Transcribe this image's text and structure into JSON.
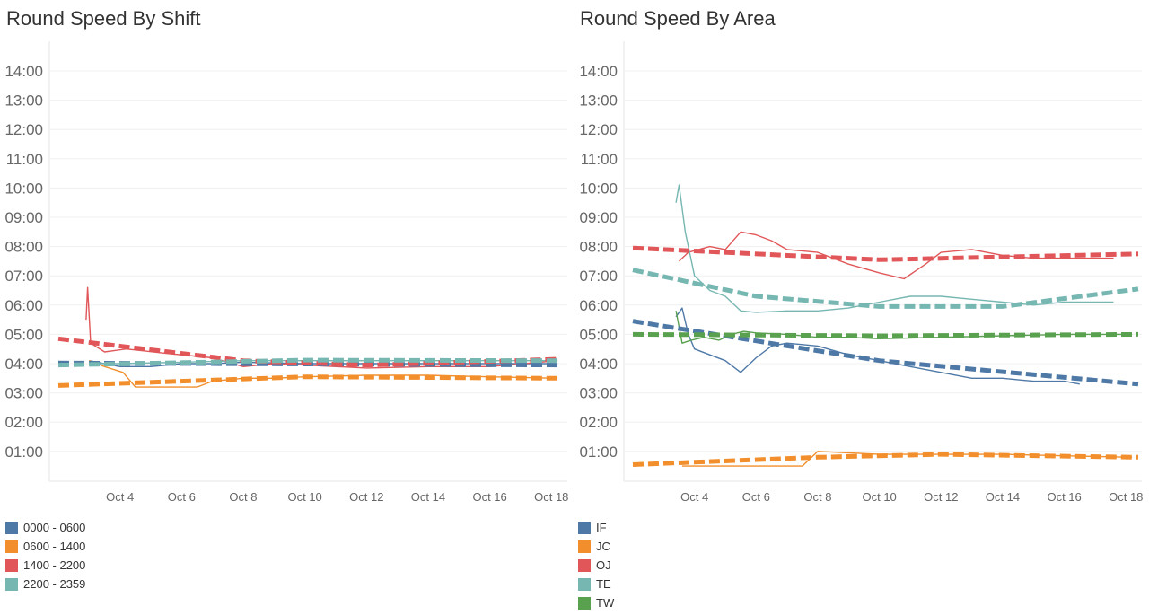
{
  "chart_data": [
    {
      "type": "line",
      "title": "Round Speed By Shift",
      "xlabel": "",
      "ylabel": "",
      "y_ticks": [
        "01:00",
        "02:00",
        "03:00",
        "04:00",
        "05:00",
        "06:00",
        "07:00",
        "08:00",
        "09:00",
        "10:00",
        "11:00",
        "12:00",
        "13:00",
        "14:00"
      ],
      "x_ticks": [
        "Oct 4",
        "Oct 6",
        "Oct 8",
        "Oct 10",
        "Oct 12",
        "Oct 14",
        "Oct 16",
        "Oct 18"
      ],
      "legend": "bottom-left",
      "grid": "horizontal",
      "series": [
        {
          "name": "0000 - 0600",
          "color": "#4e79a7",
          "values": [
            [
              3.0,
              4.1
            ],
            [
              3.5,
              4.0
            ],
            [
              4.0,
              3.9
            ],
            [
              5.0,
              3.9
            ],
            [
              6.0,
              4.0
            ],
            [
              7.0,
              4.0
            ],
            [
              8.0,
              4.05
            ],
            [
              10.0,
              4.0
            ],
            [
              12.0,
              4.0
            ],
            [
              14.0,
              4.0
            ],
            [
              16.0,
              4.0
            ],
            [
              18.2,
              4.0
            ]
          ],
          "trend": [
            [
              2.0,
              4.02
            ],
            [
              18.2,
              3.95
            ]
          ]
        },
        {
          "name": "0600 - 1400",
          "color": "#f28e2b",
          "values": [
            [
              3.0,
              4.1
            ],
            [
              3.5,
              3.9
            ],
            [
              4.1,
              3.7
            ],
            [
              4.5,
              3.2
            ],
            [
              5.5,
              3.2
            ],
            [
              6.5,
              3.2
            ],
            [
              7.0,
              3.4
            ],
            [
              8.0,
              3.5
            ],
            [
              9.0,
              3.5
            ],
            [
              10.0,
              3.55
            ],
            [
              12.0,
              3.6
            ],
            [
              14.0,
              3.6
            ],
            [
              16.0,
              3.55
            ],
            [
              18.2,
              3.5
            ]
          ],
          "trend": [
            [
              2.0,
              3.25
            ],
            [
              10.0,
              3.55
            ],
            [
              18.2,
              3.5
            ]
          ]
        },
        {
          "name": "1400 - 2200",
          "color": "#e15759",
          "values": [
            [
              2.9,
              5.5
            ],
            [
              2.95,
              6.6
            ],
            [
              3.05,
              4.7
            ],
            [
              3.5,
              4.4
            ],
            [
              4.2,
              4.5
            ],
            [
              5.5,
              4.35
            ],
            [
              7.0,
              4.2
            ],
            [
              8.0,
              3.9
            ],
            [
              9.0,
              4.0
            ],
            [
              10.0,
              3.95
            ],
            [
              12.0,
              3.85
            ],
            [
              14.0,
              3.9
            ],
            [
              16.0,
              3.9
            ],
            [
              18.2,
              4.1
            ]
          ],
          "trend": [
            [
              2.0,
              4.85
            ],
            [
              8.0,
              4.1
            ],
            [
              12.0,
              3.95
            ],
            [
              18.2,
              4.15
            ]
          ]
        },
        {
          "name": "2200 - 2359",
          "color": "#76b7b2",
          "values": [
            [
              3.0,
              4.0
            ],
            [
              4.0,
              4.0
            ],
            [
              6.0,
              4.05
            ],
            [
              8.0,
              4.1
            ],
            [
              10.0,
              4.1
            ],
            [
              12.0,
              4.1
            ],
            [
              14.0,
              4.1
            ],
            [
              16.0,
              4.1
            ],
            [
              18.2,
              4.1
            ]
          ],
          "trend": [
            [
              2.0,
              3.95
            ],
            [
              10.0,
              4.12
            ],
            [
              18.2,
              4.1
            ]
          ]
        }
      ],
      "ylim": [
        0,
        14.9
      ],
      "xlim": [
        2.0,
        18.4
      ]
    },
    {
      "type": "line",
      "title": "Round Speed By Area",
      "xlabel": "",
      "ylabel": "",
      "y_ticks": [
        "01:00",
        "02:00",
        "03:00",
        "04:00",
        "05:00",
        "06:00",
        "07:00",
        "08:00",
        "09:00",
        "10:00",
        "11:00",
        "12:00",
        "13:00",
        "14:00"
      ],
      "x_ticks": [
        "Oct 4",
        "Oct 6",
        "Oct 8",
        "Oct 10",
        "Oct 12",
        "Oct 14",
        "Oct 16",
        "Oct 18"
      ],
      "legend": "bottom-left",
      "grid": "horizontal",
      "series": [
        {
          "name": "IF",
          "color": "#4e79a7",
          "values": [
            [
              3.4,
              5.6
            ],
            [
              3.6,
              5.9
            ],
            [
              3.8,
              5.0
            ],
            [
              4.0,
              4.5
            ],
            [
              4.5,
              4.3
            ],
            [
              5.0,
              4.1
            ],
            [
              5.5,
              3.7
            ],
            [
              6.0,
              4.2
            ],
            [
              6.5,
              4.6
            ],
            [
              7.0,
              4.7
            ],
            [
              8.0,
              4.6
            ],
            [
              9.0,
              4.3
            ],
            [
              10.0,
              4.1
            ],
            [
              11.0,
              3.9
            ],
            [
              12.0,
              3.7
            ],
            [
              13.0,
              3.5
            ],
            [
              14.0,
              3.5
            ],
            [
              15.0,
              3.4
            ],
            [
              16.0,
              3.4
            ],
            [
              16.5,
              3.3
            ]
          ],
          "trend": [
            [
              2.0,
              5.45
            ],
            [
              10.0,
              4.1
            ],
            [
              18.4,
              3.3
            ]
          ]
        },
        {
          "name": "JC",
          "color": "#f28e2b",
          "values": [
            [
              3.6,
              0.5
            ],
            [
              5.5,
              0.5
            ],
            [
              7.5,
              0.5
            ],
            [
              8.0,
              1.0
            ],
            [
              9.0,
              0.95
            ],
            [
              10.0,
              0.9
            ],
            [
              12.0,
              0.9
            ],
            [
              14.0,
              0.9
            ],
            [
              16.0,
              0.85
            ],
            [
              18.2,
              0.8
            ]
          ],
          "trend": [
            [
              2.0,
              0.55
            ],
            [
              8.0,
              0.8
            ],
            [
              12.0,
              0.9
            ],
            [
              18.4,
              0.8
            ]
          ]
        },
        {
          "name": "OJ",
          "color": "#e15759",
          "values": [
            [
              3.5,
              7.5
            ],
            [
              3.8,
              7.8
            ],
            [
              4.5,
              8.0
            ],
            [
              5.0,
              7.9
            ],
            [
              5.5,
              8.5
            ],
            [
              6.0,
              8.4
            ],
            [
              6.5,
              8.2
            ],
            [
              7.0,
              7.9
            ],
            [
              8.0,
              7.8
            ],
            [
              9.0,
              7.4
            ],
            [
              10.0,
              7.1
            ],
            [
              10.8,
              6.9
            ],
            [
              11.5,
              7.4
            ],
            [
              12.0,
              7.8
            ],
            [
              13.0,
              7.9
            ],
            [
              14.0,
              7.7
            ],
            [
              15.0,
              7.6
            ],
            [
              16.0,
              7.6
            ],
            [
              17.6,
              7.6
            ]
          ],
          "trend": [
            [
              2.0,
              7.95
            ],
            [
              10.0,
              7.55
            ],
            [
              18.4,
              7.75
            ]
          ]
        },
        {
          "name": "TE",
          "color": "#76b7b2",
          "values": [
            [
              3.4,
              9.5
            ],
            [
              3.5,
              10.1
            ],
            [
              3.7,
              8.5
            ],
            [
              4.0,
              7.0
            ],
            [
              4.5,
              6.5
            ],
            [
              5.0,
              6.3
            ],
            [
              5.5,
              5.8
            ],
            [
              6.0,
              5.75
            ],
            [
              7.0,
              5.8
            ],
            [
              8.0,
              5.8
            ],
            [
              9.0,
              5.9
            ],
            [
              10.0,
              6.1
            ],
            [
              11.0,
              6.3
            ],
            [
              12.0,
              6.3
            ],
            [
              13.0,
              6.2
            ],
            [
              14.0,
              6.1
            ],
            [
              15.0,
              6.0
            ],
            [
              16.0,
              6.1
            ],
            [
              17.6,
              6.1
            ]
          ],
          "trend": [
            [
              2.0,
              7.2
            ],
            [
              6.0,
              6.3
            ],
            [
              10.0,
              5.95
            ],
            [
              14.0,
              5.95
            ],
            [
              18.4,
              6.55
            ]
          ]
        },
        {
          "name": "TW",
          "color": "#59a14f",
          "values": [
            [
              3.4,
              5.8
            ],
            [
              3.6,
              4.7
            ],
            [
              3.9,
              4.8
            ],
            [
              4.3,
              4.9
            ],
            [
              4.8,
              4.8
            ],
            [
              5.2,
              5.0
            ],
            [
              5.6,
              5.1
            ],
            [
              6.0,
              5.05
            ],
            [
              7.0,
              5.0
            ],
            [
              8.0,
              4.9
            ],
            [
              9.0,
              4.9
            ],
            [
              10.0,
              4.85
            ],
            [
              12.0,
              4.9
            ],
            [
              14.0,
              4.95
            ],
            [
              16.0,
              5.0
            ],
            [
              18.2,
              5.0
            ]
          ],
          "trend": [
            [
              2.0,
              5.0
            ],
            [
              10.0,
              4.95
            ],
            [
              18.4,
              5.0
            ]
          ]
        }
      ],
      "ylim": [
        0,
        14.9
      ],
      "xlim": [
        2.0,
        18.4
      ]
    }
  ]
}
